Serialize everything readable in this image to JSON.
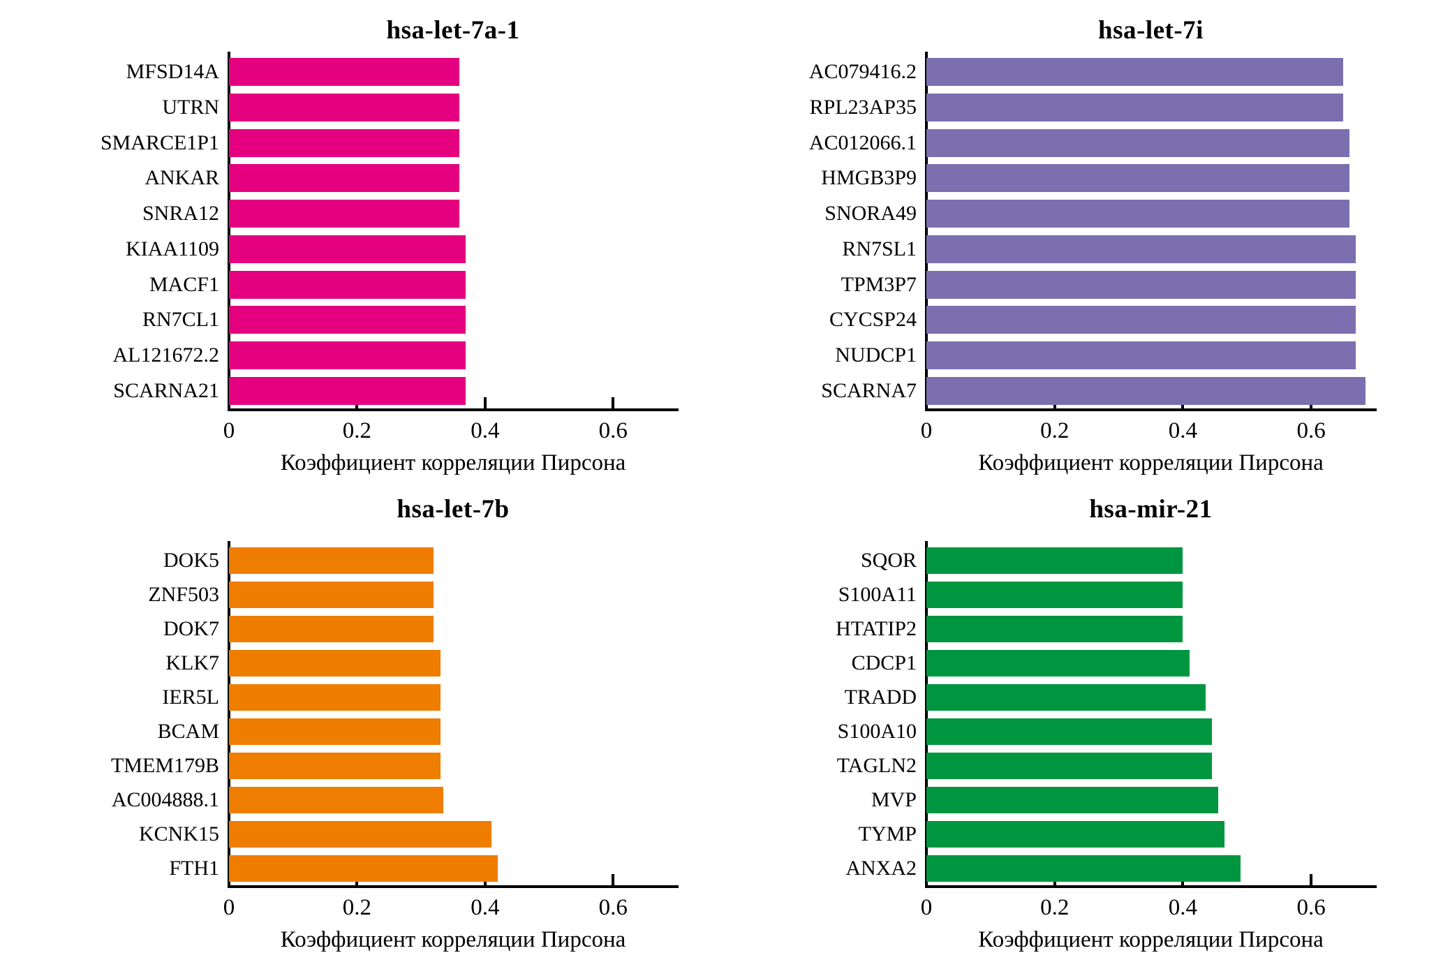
{
  "figure": {
    "background": "#ffffff",
    "axis_color": "#000000",
    "grid": false,
    "legend": "none"
  },
  "chart_data": [
    {
      "type": "bar",
      "orientation": "horizontal",
      "title": "hsa-let-7a-1",
      "color": "#e4007f",
      "categories": [
        "MFSD14A",
        "UTRN",
        "SMARCE1P1",
        "ANKAR",
        "SNRA12",
        "KIAA1109",
        "MACF1",
        "RN7CL1",
        "AL121672.2",
        "SCARNA21"
      ],
      "values": [
        0.36,
        0.36,
        0.36,
        0.36,
        0.36,
        0.37,
        0.37,
        0.37,
        0.37,
        0.37
      ],
      "xlabel": "Коэффициент корреляции Пирсона",
      "xlim": [
        0,
        0.7
      ],
      "xticks": [
        0,
        0.2,
        0.4,
        0.6
      ],
      "xtick_labels": [
        "0",
        "0.2",
        "0.4",
        "0.6"
      ]
    },
    {
      "type": "bar",
      "orientation": "horizontal",
      "title": "hsa-let-7i",
      "color": "#7b6fb0",
      "categories": [
        "AC079416.2",
        "RPL23AP35",
        "AC012066.1",
        "HMGB3P9",
        "SNORA49",
        "RN7SL1",
        "TPM3P7",
        "CYCSP24",
        "NUDCP1",
        "SCARNA7"
      ],
      "values": [
        0.65,
        0.65,
        0.66,
        0.66,
        0.66,
        0.67,
        0.67,
        0.67,
        0.67,
        0.685
      ],
      "xlabel": "Коэффициент корреляции Пирсона",
      "xlim": [
        0,
        0.7
      ],
      "xticks": [
        0,
        0.2,
        0.4,
        0.6
      ],
      "xtick_labels": [
        "0",
        "0.2",
        "0.4",
        "0.6"
      ]
    },
    {
      "type": "bar",
      "orientation": "horizontal",
      "title": "hsa-let-7b",
      "color": "#ef7d00",
      "categories": [
        "DOK5",
        "ZNF503",
        "DOK7",
        "KLK7",
        "IER5L",
        "BCAM",
        "TMEM179B",
        "AC004888.1",
        "KCNK15",
        "FTH1"
      ],
      "values": [
        0.32,
        0.32,
        0.32,
        0.33,
        0.33,
        0.33,
        0.33,
        0.335,
        0.41,
        0.42
      ],
      "xlabel": "Коэффициент корреляции Пирсона",
      "xlim": [
        0,
        0.7
      ],
      "xticks": [
        0,
        0.2,
        0.4,
        0.6
      ],
      "xtick_labels": [
        "0",
        "0.2",
        "0.4",
        "0.6"
      ]
    },
    {
      "type": "bar",
      "orientation": "horizontal",
      "title": "hsa-mir-21",
      "color": "#009640",
      "categories": [
        "SQOR",
        "S100A11",
        "HTATIP2",
        "CDCP1",
        "TRADD",
        "S100A10",
        "TAGLN2",
        "MVP",
        "TYMP",
        "ANXA2"
      ],
      "values": [
        0.4,
        0.4,
        0.4,
        0.41,
        0.435,
        0.445,
        0.445,
        0.455,
        0.465,
        0.49
      ],
      "xlabel": "Коэффициент корреляции Пирсона",
      "xlim": [
        0,
        0.7
      ],
      "xticks": [
        0,
        0.2,
        0.4,
        0.6
      ],
      "xtick_labels": [
        "0",
        "0.2",
        "0.4",
        "0.6"
      ]
    }
  ]
}
